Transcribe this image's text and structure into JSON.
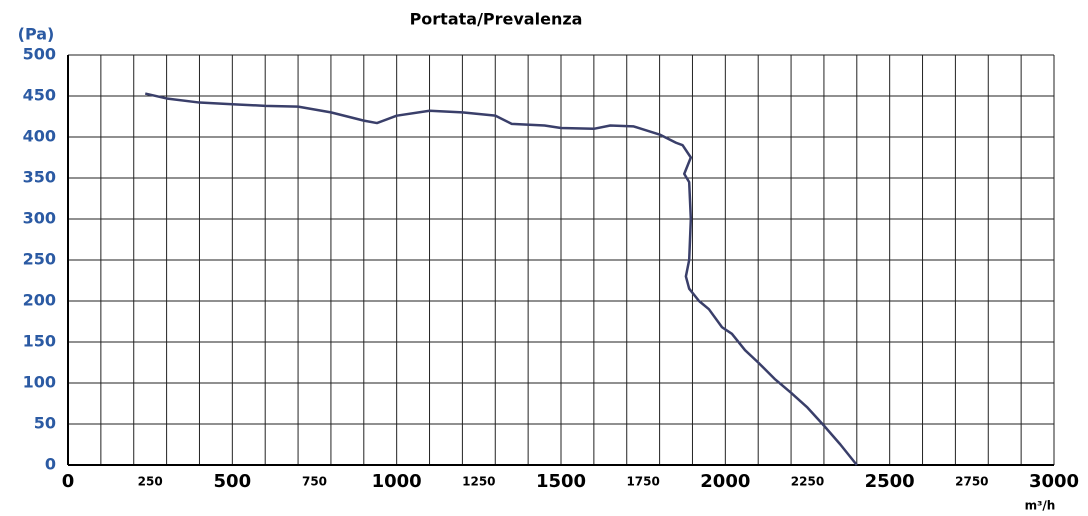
{
  "chart_data": {
    "type": "line",
    "title": "Portata/Prevalenza",
    "y_label": "(Pa)",
    "x_label": "m³/h",
    "xlim": [
      0,
      3000
    ],
    "ylim": [
      0,
      500
    ],
    "xticks": [
      0,
      250,
      500,
      750,
      1000,
      1250,
      1500,
      1750,
      2000,
      2250,
      2500,
      2750,
      3000
    ],
    "yticks": [
      0,
      50,
      100,
      150,
      200,
      250,
      300,
      350,
      400,
      450,
      500
    ],
    "xgrid": [
      0,
      100,
      200,
      300,
      400,
      500,
      600,
      700,
      800,
      900,
      1000,
      1100,
      1200,
      1300,
      1400,
      1500,
      1600,
      1700,
      1800,
      1900,
      2000,
      2100,
      2200,
      2300,
      2400,
      2500,
      2600,
      2700,
      2800,
      2900,
      3000
    ],
    "grid": true,
    "series": [
      {
        "color": "#3a3f6a",
        "x": [
          235,
          300,
          400,
          500,
          600,
          700,
          800,
          900,
          940,
          1000,
          1100,
          1200,
          1300,
          1350,
          1450,
          1500,
          1600,
          1650,
          1720,
          1800,
          1850,
          1870,
          1895,
          1875,
          1890,
          1895,
          1890,
          1880,
          1890,
          1920,
          1950,
          1990,
          2020,
          2060,
          2100,
          2150,
          2200,
          2250,
          2300,
          2350,
          2400
        ],
        "values": [
          453,
          447,
          442,
          440,
          438,
          437,
          430,
          420,
          417,
          426,
          432,
          430,
          426,
          416,
          414,
          411,
          410,
          414,
          413,
          403,
          393,
          390,
          375,
          355,
          345,
          300,
          250,
          230,
          215,
          200,
          190,
          168,
          160,
          140,
          125,
          105,
          88,
          70,
          48,
          25,
          0
        ]
      }
    ]
  }
}
